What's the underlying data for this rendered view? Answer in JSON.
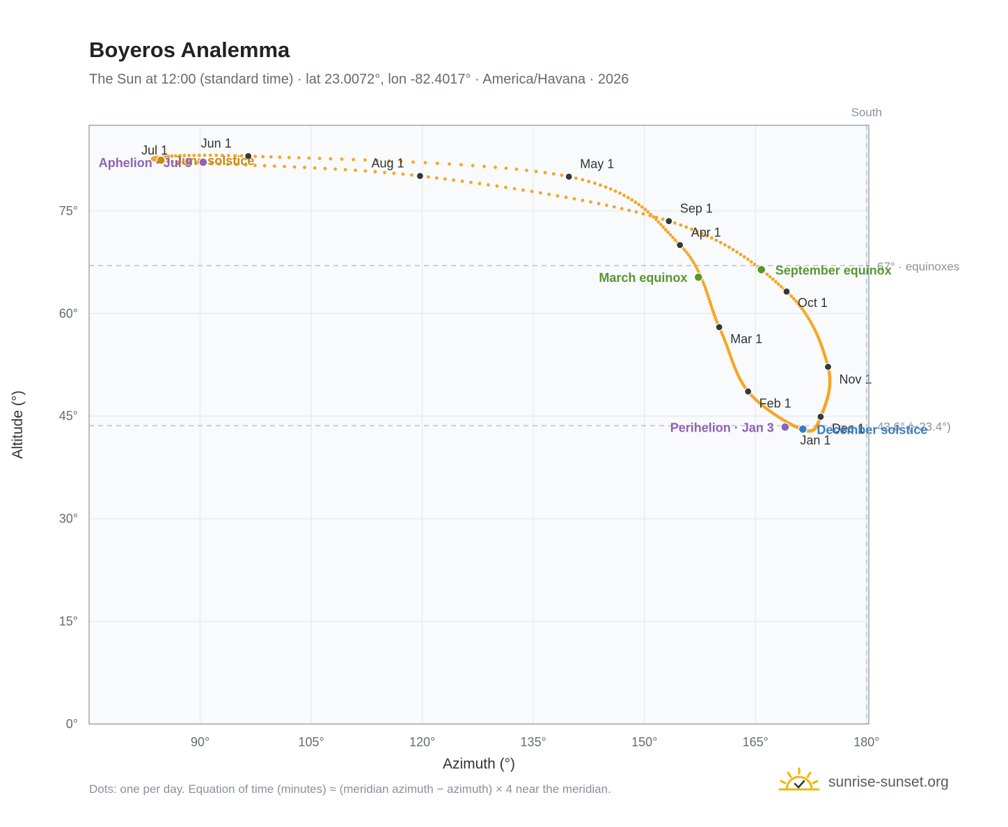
{
  "title": "Boyeros Analemma",
  "subtitle": "The Sun at 12:00 (standard time) · lat 23.0072°, lon -82.4017° · America/Havana · 2026",
  "footnote": "Dots: one per day. Equation of time (minutes) ≈ (meridian azimuth − azimuth) × 4 near the meridian.",
  "brand": {
    "name": "sunrise-sunset.org",
    "icon": "sun-icon"
  },
  "colors": {
    "curve": "#f5a623",
    "month": "#333840",
    "equinox": "#5a9630",
    "solstice_june": "#c98a12",
    "solstice_dec": "#3a7cc0",
    "apsis": "#8e62b5",
    "grid": "#e6e9ee",
    "plot_bg": "#f8fafc",
    "frame": "#a0a7b2",
    "refline": "#b8c1cb"
  },
  "chart_data": {
    "type": "scatter",
    "title": "Boyeros Analemma",
    "xlabel": "Azimuth (°)",
    "ylabel": "Altitude (°)",
    "xlim": [
      75,
      180.3
    ],
    "ylim": [
      0,
      87.5
    ],
    "xticks": [
      90,
      105,
      120,
      135,
      150,
      165,
      180
    ],
    "yticks": [
      0,
      15,
      30,
      45,
      60,
      75
    ],
    "tick_suffix": "°",
    "grid": true,
    "legend": "none",
    "series_name": "",
    "month_points": [
      {
        "label": "Jan 1",
        "az": 171.4,
        "alt": 43.0
      },
      {
        "label": "Feb 1",
        "az": 164.0,
        "alt": 48.6
      },
      {
        "label": "Mar 1",
        "az": 160.1,
        "alt": 58.0
      },
      {
        "label": "Apr 1",
        "az": 154.8,
        "alt": 70.0
      },
      {
        "label": "May 1",
        "az": 139.8,
        "alt": 80.0
      },
      {
        "label": "Jun 1",
        "az": 96.5,
        "alt": 83.0
      },
      {
        "label": "Jul 1",
        "az": 84.7,
        "alt": 82.3
      },
      {
        "label": "Aug 1",
        "az": 119.7,
        "alt": 80.1
      },
      {
        "label": "Sep 1",
        "az": 153.3,
        "alt": 73.5
      },
      {
        "label": "Oct 1",
        "az": 169.2,
        "alt": 63.2
      },
      {
        "label": "Nov 1",
        "az": 174.8,
        "alt": 52.2
      },
      {
        "label": "Dec 1",
        "az": 173.8,
        "alt": 44.9
      }
    ],
    "events": [
      {
        "label": "March equinox",
        "az": 157.3,
        "alt": 65.3,
        "color_key": "equinox",
        "anchor": "end"
      },
      {
        "label": "June solstice",
        "az": 84.7,
        "alt": 82.4,
        "color_key": "solstice_june",
        "anchor": "start"
      },
      {
        "label": "September equinox",
        "az": 165.8,
        "alt": 66.4,
        "color_key": "equinox",
        "anchor": "start"
      },
      {
        "label": "December solstice",
        "az": 171.4,
        "alt": 43.1,
        "color_key": "solstice_dec",
        "anchor": "start"
      },
      {
        "label": "Perihelion · Jan 3",
        "az": 169.0,
        "alt": 43.4,
        "color_key": "apsis",
        "anchor": "end"
      },
      {
        "label": "Aphelion · Jul 9",
        "az": 90.4,
        "alt": 82.1,
        "color_key": "apsis",
        "anchor": "end"
      }
    ],
    "reference_lines": [
      {
        "axis": "y",
        "value": 67.0,
        "label": "67° · equinoxes"
      },
      {
        "axis": "y",
        "value": 43.6,
        "label": "43.6° (−23.4°)"
      },
      {
        "axis": "x",
        "value": 180,
        "label": "South"
      }
    ]
  }
}
